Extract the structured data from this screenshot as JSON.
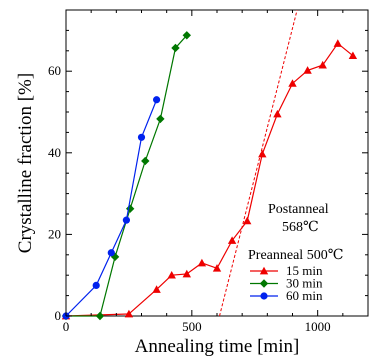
{
  "chart_data": {
    "type": "line",
    "xlabel": "Annealing time [min]",
    "ylabel": "Crystalline fraction [%]",
    "xlim": [
      0,
      1200
    ],
    "ylim": [
      0,
      75
    ],
    "xticks": [
      0,
      500,
      1000
    ],
    "yticks": [
      0,
      20,
      40,
      60
    ],
    "grid": false,
    "legend_title": "Preanneal 500℃",
    "legend_placement": "bottom-right",
    "annotation": {
      "line1": "Postanneal",
      "line2": "568℃"
    },
    "series": [
      {
        "name": "15 min",
        "color": "#ee0000",
        "marker": "triangle",
        "x": [
          0,
          250,
          360,
          420,
          480,
          540,
          600,
          660,
          720,
          780,
          840,
          900,
          960,
          1020,
          1080,
          1140
        ],
        "y": [
          0,
          0.5,
          6.5,
          10,
          10.3,
          13,
          11.7,
          18.5,
          23.3,
          39.7,
          49.5,
          57,
          60.2,
          61.5,
          66.8,
          63.8
        ]
      },
      {
        "name": "30 min",
        "color": "#007700",
        "marker": "diamond",
        "x": [
          0,
          135,
          195,
          255,
          315,
          375,
          435,
          480
        ],
        "y": [
          0,
          0,
          14.5,
          26.3,
          38,
          48.3,
          65.7,
          68.8
        ]
      },
      {
        "name": "60 min",
        "color": "#0022ee",
        "marker": "circle",
        "x": [
          0,
          120,
          180,
          240,
          300,
          360
        ],
        "y": [
          0,
          7.5,
          15.5,
          23.5,
          43.8,
          53
        ]
      }
    ],
    "fit_line": {
      "style": "dashed",
      "color": "#ee0000",
      "x": [
        610,
        980
      ],
      "y": [
        0,
        90
      ]
    }
  }
}
